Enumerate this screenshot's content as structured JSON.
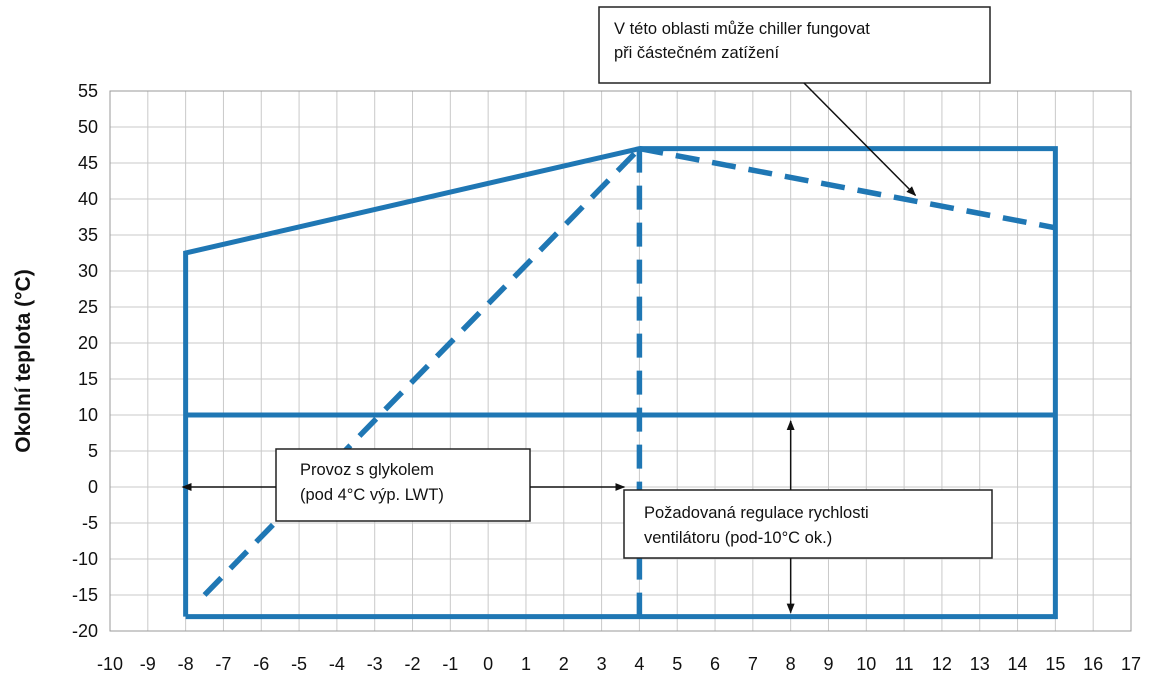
{
  "chart_data": {
    "type": "line",
    "title": "",
    "xlabel": "",
    "ylabel": "Okolní teplota (°C)",
    "xlim": [
      -10,
      17
    ],
    "ylim": [
      -20,
      55
    ],
    "grid": true,
    "x_ticks": [
      -10,
      -9,
      -8,
      -7,
      -6,
      -5,
      -4,
      -3,
      -2,
      -1,
      0,
      1,
      2,
      3,
      4,
      5,
      6,
      7,
      8,
      9,
      10,
      11,
      12,
      13,
      14,
      15,
      16,
      17
    ],
    "y_ticks": [
      55,
      50,
      45,
      40,
      35,
      30,
      25,
      20,
      15,
      10,
      5,
      0,
      -5,
      -10,
      -15,
      -20
    ],
    "colors": {
      "envelope": "#1f77b4",
      "grid": "#c9c9c9",
      "text": "#111111"
    },
    "series": [
      {
        "style": "solid",
        "points": [
          [
            -8,
            -18
          ],
          [
            -8,
            32.5
          ],
          [
            4,
            47
          ],
          [
            15,
            47
          ],
          [
            15,
            -18
          ],
          [
            -8,
            -18
          ]
        ]
      },
      {
        "style": "solid",
        "points": [
          [
            -8,
            10
          ],
          [
            15,
            10
          ]
        ]
      },
      {
        "style": "dashed",
        "points": [
          [
            4,
            -18
          ],
          [
            4,
            47
          ]
        ]
      },
      {
        "style": "dashed",
        "points": [
          [
            4,
            47
          ],
          [
            15,
            36
          ]
        ]
      },
      {
        "style": "dashed",
        "points": [
          [
            -7.5,
            -15
          ],
          [
            4,
            47
          ]
        ]
      }
    ],
    "annotations": [
      {
        "lines": [
          "V této oblasti může chiller fungovat",
          "při částečném zatížení"
        ],
        "arrow_to": [
          11.3,
          40.5
        ]
      },
      {
        "lines": [
          "Provoz s glykolem",
          "(pod 4°C výp. LWT)"
        ],
        "arrows": [
          [
            -8,
            0
          ],
          [
            3.6,
            0
          ]
        ]
      },
      {
        "lines": [
          "Požadovaná  regulace  rychlosti",
          "ventilátoru (pod-10°C ok.)"
        ],
        "arrows": [
          [
            8,
            10
          ],
          [
            8,
            -18
          ]
        ]
      }
    ]
  }
}
